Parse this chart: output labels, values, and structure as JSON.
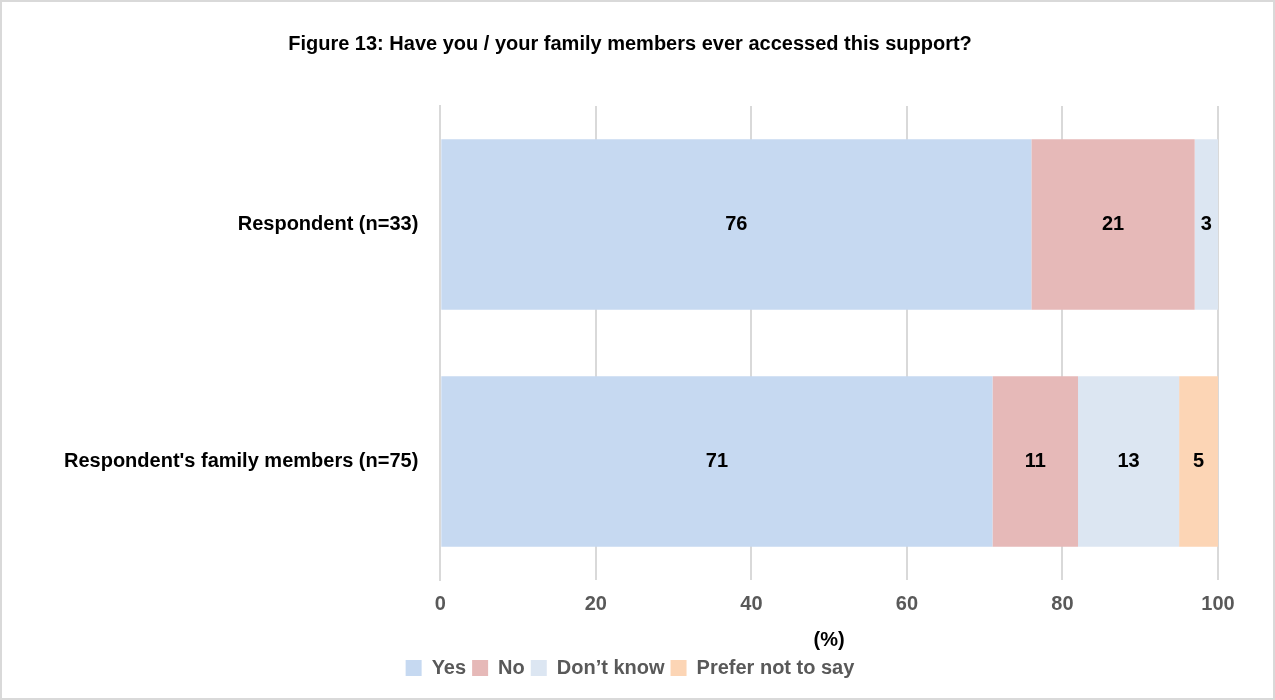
{
  "chart_data": {
    "type": "bar",
    "orientation": "horizontal",
    "stacked": true,
    "title": "Figure 13: Have you / your family members ever accessed this support?",
    "xlabel": "(%)",
    "categories": [
      "Respondent (n=33)",
      "Respondent's family members (n=75)"
    ],
    "series": [
      {
        "name": "Yes",
        "color": "#c6d9f1",
        "values": [
          76,
          71
        ]
      },
      {
        "name": "No",
        "color": "#e6b9b8",
        "values": [
          21,
          11
        ]
      },
      {
        "name": "Don’t know",
        "color": "#dce6f2",
        "values": [
          3,
          13
        ]
      },
      {
        "name": "Prefer not to say",
        "color": "#fcd5b5",
        "values": [
          null,
          5
        ]
      }
    ],
    "xlim": [
      0,
      100
    ],
    "xticks": [
      0,
      20,
      40,
      60,
      80,
      100
    ],
    "grid": "x",
    "legend": "bottom",
    "data_labels": true
  }
}
